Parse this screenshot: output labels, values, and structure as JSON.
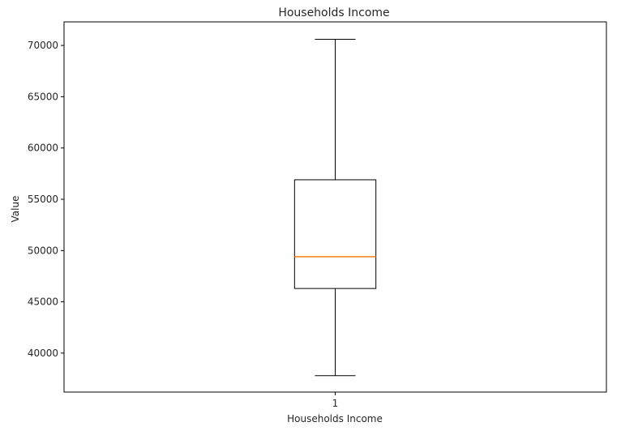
{
  "chart_data": {
    "type": "box",
    "title": "Households Income",
    "xlabel": "Households Income",
    "ylabel": "Value",
    "ylim": [
      36200,
      72300
    ],
    "yticks": [
      40000,
      45000,
      50000,
      55000,
      60000,
      65000,
      70000
    ],
    "categories": [
      "1"
    ],
    "boxes": [
      {
        "category": "1",
        "whisker_low": 37800,
        "q1": 46300,
        "median": 49400,
        "q3": 56900,
        "whisker_high": 70600
      }
    ],
    "grid": false,
    "colors": {
      "box": "#000000",
      "median": "#ff7f0e"
    }
  }
}
